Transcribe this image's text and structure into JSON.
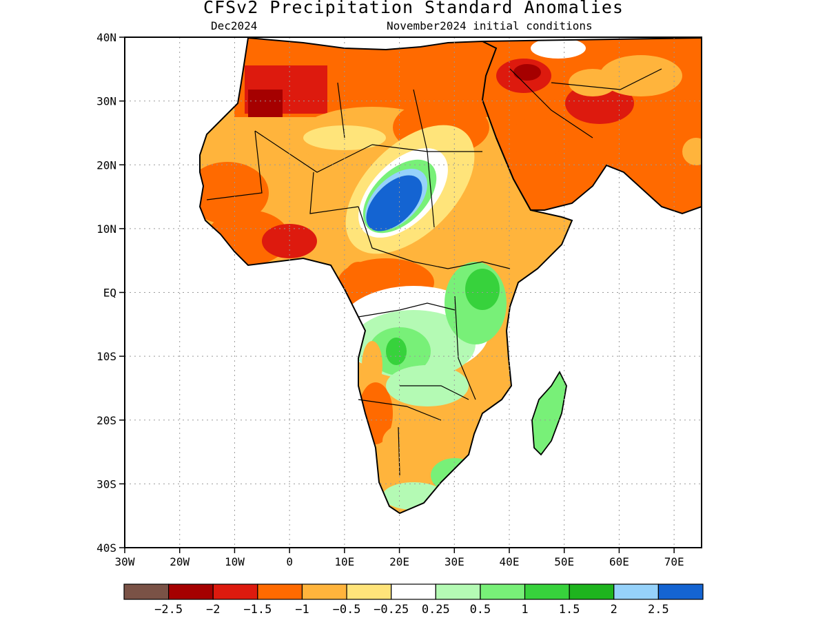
{
  "header": {
    "title": "CFSv2 Precipitation Standard Anomalies",
    "valid_month": "Dec2024",
    "init_conditions": "November2024 initial conditions"
  },
  "map": {
    "lat_labels": [
      "40N",
      "30N",
      "20N",
      "10N",
      "EQ",
      "10S",
      "20S",
      "30S",
      "40S"
    ],
    "lon_labels": [
      "30W",
      "20W",
      "10W",
      "0",
      "10E",
      "20E",
      "30E",
      "40E",
      "50E",
      "60E",
      "70E"
    ],
    "lat_range": [
      -40,
      40
    ],
    "lon_range": [
      -30,
      75
    ],
    "grid": "dotted"
  },
  "colorbar": {
    "colors": [
      "#7a5246",
      "#a50000",
      "#dd1a0e",
      "#ff6a00",
      "#ffb43c",
      "#ffe47a",
      "#ffffff",
      "#b4fab4",
      "#78f078",
      "#37d23c",
      "#1eb41e",
      "#96d2fa",
      "#1464d2"
    ],
    "labels": [
      "−2.5",
      "−2",
      "−1.5",
      "−1",
      "−0.5",
      "−0.25",
      "0.25",
      "0.5",
      "1",
      "1.5",
      "2",
      "2.5"
    ]
  }
}
